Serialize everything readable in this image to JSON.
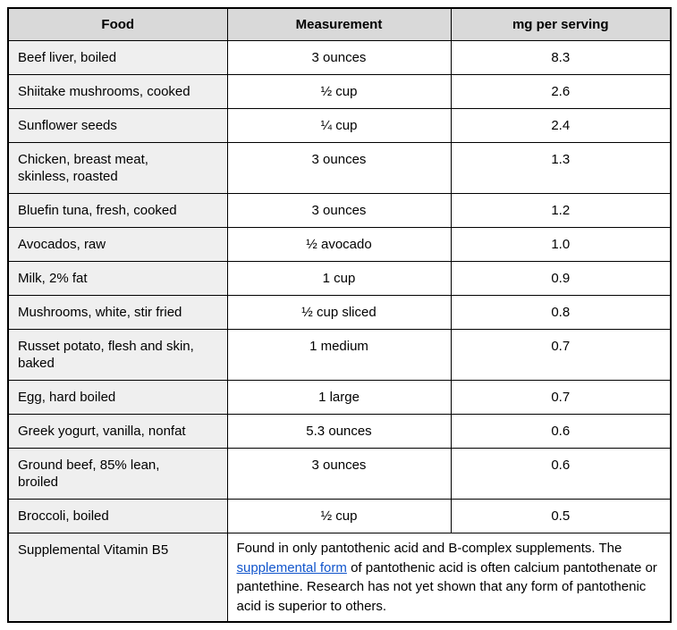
{
  "colors": {
    "header_bg": "#d9d9d9",
    "food_column_bg": "#efefef",
    "border": "#000000",
    "link": "#1155cc",
    "text": "#000000"
  },
  "table": {
    "headers": [
      "Food",
      "Measurement",
      "mg per serving"
    ],
    "rows": [
      {
        "food": "Beef liver, boiled",
        "measurement": "3 ounces",
        "mg": "8.3"
      },
      {
        "food": "Shiitake mushrooms, cooked",
        "measurement": "½ cup",
        "mg": "2.6"
      },
      {
        "food": "Sunflower seeds",
        "measurement": "¼ cup",
        "mg": "2.4"
      },
      {
        "food": "Chicken, breast meat,\nskinless, roasted",
        "measurement": "3 ounces",
        "mg": "1.3"
      },
      {
        "food": "Bluefin tuna, fresh, cooked",
        "measurement": "3 ounces",
        "mg": "1.2"
      },
      {
        "food": "Avocados, raw",
        "measurement": "½ avocado",
        "mg": "1.0"
      },
      {
        "food": "Milk, 2% fat",
        "measurement": "1 cup",
        "mg": "0.9"
      },
      {
        "food": "Mushrooms, white, stir fried",
        "measurement": "½ cup sliced",
        "mg": "0.8"
      },
      {
        "food": "Russet potato, flesh and skin,\nbaked",
        "measurement": "1 medium",
        "mg": "0.7"
      },
      {
        "food": "Egg, hard boiled",
        "measurement": "1 large",
        "mg": "0.7"
      },
      {
        "food": "Greek yogurt, vanilla, nonfat",
        "measurement": "5.3 ounces",
        "mg": "0.6"
      },
      {
        "food": "Ground beef, 85% lean,\nbroiled",
        "measurement": "3 ounces",
        "mg": "0.6"
      },
      {
        "food": "Broccoli, boiled",
        "measurement": "½ cup",
        "mg": "0.5"
      }
    ],
    "footer": {
      "food": "Supplemental Vitamin B5",
      "note_before_link": "Found in only pantothenic acid and B-complex supplements. The ",
      "link_text": "supplemental form",
      "note_after_link": " of pantothenic acid is often calcium pantothenate or pantethine. Research has not yet shown that any form of pantothenic acid is superior to others."
    }
  }
}
